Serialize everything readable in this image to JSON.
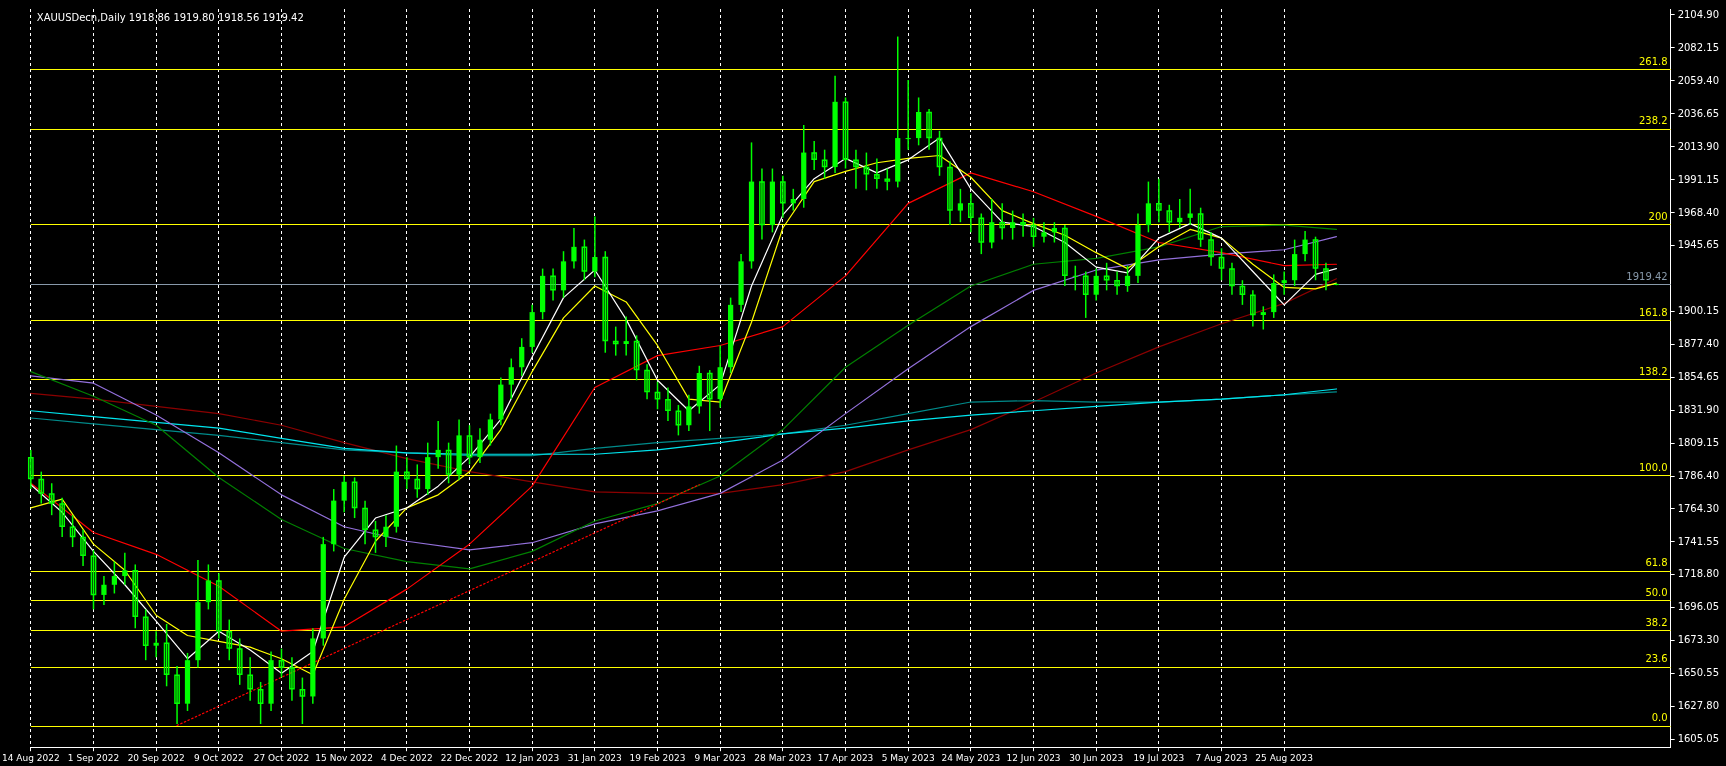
{
  "chart_data": {
    "type": "candlestick",
    "title": "XAUUSDecn,Daily 1918.86 1919.80 1918.56 1919.42",
    "categories": [
      "14 Aug 2022",
      null,
      null,
      null,
      null,
      null,
      "1 Sep 2022",
      null,
      null,
      null,
      null,
      null,
      "20 Sep 2022",
      null,
      null,
      null,
      null,
      null,
      "9 Oct 2022",
      null,
      null,
      null,
      null,
      null,
      "27 Oct 2022",
      null,
      null,
      null,
      null,
      null,
      "15 Nov 2022",
      null,
      null,
      null,
      null,
      null,
      "4 Dec 2022",
      null,
      null,
      null,
      null,
      null,
      "22 Dec 2022",
      null,
      null,
      null,
      null,
      null,
      "12 Jan 2023",
      null,
      null,
      null,
      null,
      null,
      "31 Jan 2023",
      null,
      null,
      null,
      null,
      null,
      "19 Feb 2023",
      null,
      null,
      null,
      null,
      null,
      "9 Mar 2023",
      null,
      null,
      null,
      null,
      null,
      "28 Mar 2023",
      null,
      null,
      null,
      null,
      null,
      "17 Apr 2023",
      null,
      null,
      null,
      null,
      null,
      "5 May 2023",
      null,
      null,
      null,
      null,
      null,
      "24 May 2023",
      null,
      null,
      null,
      null,
      null,
      "12 Jun 2023",
      null,
      null,
      null,
      null,
      null,
      "30 Jun 2023",
      null,
      null,
      null,
      null,
      null,
      "19 Jul 2023",
      null,
      null,
      null,
      null,
      null,
      "7 Aug 2023",
      null,
      null,
      null,
      null,
      null,
      "25 Aug 2023",
      null,
      null,
      null,
      null,
      null,
      null,
      null,
      null,
      null,
      null,
      null,
      null,
      null,
      null,
      null,
      null,
      null,
      null,
      null,
      null,
      null,
      null,
      null,
      null,
      null,
      null,
      null,
      null,
      null,
      null,
      null,
      null,
      null,
      null,
      null,
      null,
      null
    ],
    "color": "#00ff00",
    "ohlc": [
      [
        1800,
        1805,
        1778,
        1785
      ],
      [
        1785,
        1790,
        1768,
        1775
      ],
      [
        1775,
        1782,
        1760,
        1768
      ],
      [
        1768,
        1772,
        1745,
        1752
      ],
      [
        1752,
        1760,
        1738,
        1745
      ],
      [
        1745,
        1750,
        1725,
        1732
      ],
      [
        1732,
        1736,
        1695,
        1705
      ],
      [
        1705,
        1718,
        1698,
        1712
      ],
      [
        1712,
        1728,
        1706,
        1718
      ],
      [
        1718,
        1734,
        1712,
        1722
      ],
      [
        1722,
        1726,
        1682,
        1690
      ],
      [
        1690,
        1695,
        1660,
        1670
      ],
      [
        1670,
        1680,
        1662,
        1672
      ],
      [
        1672,
        1685,
        1642,
        1650
      ],
      [
        1650,
        1656,
        1616,
        1630
      ],
      [
        1630,
        1665,
        1625,
        1660
      ],
      [
        1660,
        1729,
        1655,
        1700
      ],
      [
        1700,
        1726,
        1695,
        1715
      ],
      [
        1715,
        1720,
        1675,
        1680
      ],
      [
        1680,
        1688,
        1660,
        1668
      ],
      [
        1668,
        1675,
        1643,
        1650
      ],
      [
        1650,
        1662,
        1632,
        1640
      ],
      [
        1640,
        1645,
        1616,
        1630
      ],
      [
        1630,
        1666,
        1625,
        1660
      ],
      [
        1660,
        1668,
        1648,
        1655
      ],
      [
        1655,
        1662,
        1632,
        1640
      ],
      [
        1640,
        1648,
        1616,
        1635
      ],
      [
        1635,
        1682,
        1630,
        1675
      ],
      [
        1675,
        1745,
        1670,
        1740
      ],
      [
        1740,
        1778,
        1735,
        1770
      ],
      [
        1770,
        1787,
        1762,
        1783
      ],
      [
        1783,
        1786,
        1758,
        1765
      ],
      [
        1765,
        1770,
        1740,
        1750
      ],
      [
        1750,
        1756,
        1734,
        1745
      ],
      [
        1745,
        1760,
        1738,
        1752
      ],
      [
        1752,
        1808,
        1748,
        1790
      ],
      [
        1790,
        1800,
        1778,
        1785
      ],
      [
        1785,
        1795,
        1772,
        1778
      ],
      [
        1778,
        1810,
        1774,
        1800
      ],
      [
        1800,
        1825,
        1792,
        1805
      ],
      [
        1805,
        1810,
        1782,
        1788
      ],
      [
        1788,
        1826,
        1784,
        1815
      ],
      [
        1815,
        1822,
        1795,
        1800
      ],
      [
        1800,
        1820,
        1796,
        1812
      ],
      [
        1812,
        1830,
        1808,
        1826
      ],
      [
        1826,
        1855,
        1822,
        1850
      ],
      [
        1850,
        1868,
        1840,
        1862
      ],
      [
        1862,
        1882,
        1856,
        1876
      ],
      [
        1876,
        1905,
        1872,
        1900
      ],
      [
        1900,
        1930,
        1895,
        1925
      ],
      [
        1925,
        1930,
        1908,
        1915
      ],
      [
        1915,
        1942,
        1910,
        1935
      ],
      [
        1935,
        1958,
        1930,
        1945
      ],
      [
        1945,
        1950,
        1922,
        1928
      ],
      [
        1928,
        1966,
        1924,
        1938
      ],
      [
        1938,
        1942,
        1872,
        1880
      ],
      [
        1880,
        1890,
        1870,
        1878
      ],
      [
        1878,
        1897,
        1870,
        1880
      ],
      [
        1880,
        1884,
        1853,
        1860
      ],
      [
        1860,
        1864,
        1840,
        1845
      ],
      [
        1845,
        1852,
        1833,
        1840
      ],
      [
        1840,
        1848,
        1825,
        1832
      ],
      [
        1832,
        1836,
        1815,
        1822
      ],
      [
        1822,
        1843,
        1818,
        1835
      ],
      [
        1835,
        1863,
        1830,
        1858
      ],
      [
        1858,
        1860,
        1818,
        1840
      ],
      [
        1840,
        1877,
        1834,
        1862
      ],
      [
        1862,
        1910,
        1858,
        1905
      ],
      [
        1905,
        1940,
        1900,
        1935
      ],
      [
        1935,
        2017,
        1930,
        1990
      ],
      [
        1990,
        1999,
        1950,
        1960
      ],
      [
        1960,
        1999,
        1955,
        1990
      ],
      [
        1990,
        1994,
        1965,
        1975
      ],
      [
        1975,
        1985,
        1970,
        1978
      ],
      [
        1978,
        2029,
        1972,
        2010
      ],
      [
        2010,
        2018,
        1998,
        2005
      ],
      [
        2005,
        2012,
        1992,
        2000
      ],
      [
        2000,
        2063,
        1996,
        2045
      ],
      [
        2045,
        2048,
        1999,
        2005
      ],
      [
        2005,
        2012,
        1985,
        2000
      ],
      [
        2000,
        2010,
        1984,
        1995
      ],
      [
        1995,
        2006,
        1985,
        1992
      ],
      [
        1992,
        1999,
        1984,
        1990
      ],
      [
        1990,
        2090,
        1986,
        2020
      ],
      [
        2020,
        2060,
        2012,
        2020
      ],
      [
        2020,
        2048,
        2015,
        2038
      ],
      [
        2038,
        2040,
        2012,
        2020
      ],
      [
        2020,
        2025,
        1994,
        2000
      ],
      [
        2000,
        2004,
        1960,
        1970
      ],
      [
        1970,
        1985,
        1962,
        1975
      ],
      [
        1975,
        1982,
        1955,
        1965
      ],
      [
        1965,
        1968,
        1940,
        1948
      ],
      [
        1948,
        1978,
        1944,
        1962
      ],
      [
        1962,
        1975,
        1950,
        1958
      ],
      [
        1958,
        1970,
        1950,
        1962
      ],
      [
        1962,
        1968,
        1952,
        1960
      ],
      [
        1960,
        1965,
        1945,
        1952
      ],
      [
        1952,
        1962,
        1948,
        1955
      ],
      [
        1955,
        1962,
        1948,
        1958
      ],
      [
        1958,
        1960,
        1918,
        1925
      ],
      [
        1925,
        1932,
        1915,
        1925
      ],
      [
        1925,
        1928,
        1896,
        1912
      ],
      [
        1912,
        1930,
        1908,
        1925
      ],
      [
        1925,
        1934,
        1915,
        1922
      ],
      [
        1922,
        1928,
        1912,
        1918
      ],
      [
        1918,
        1932,
        1914,
        1925
      ],
      [
        1925,
        1968,
        1920,
        1960
      ],
      [
        1960,
        1990,
        1955,
        1975
      ],
      [
        1975,
        1992,
        1962,
        1970
      ],
      [
        1970,
        1974,
        1955,
        1962
      ],
      [
        1962,
        1978,
        1958,
        1965
      ],
      [
        1965,
        1985,
        1960,
        1968
      ],
      [
        1968,
        1972,
        1945,
        1950
      ],
      [
        1950,
        1955,
        1932,
        1938
      ],
      [
        1938,
        1944,
        1922,
        1930
      ],
      [
        1930,
        1934,
        1912,
        1918
      ],
      [
        1918,
        1922,
        1905,
        1912
      ],
      [
        1912,
        1915,
        1890,
        1898
      ],
      [
        1898,
        1904,
        1888,
        1900
      ],
      [
        1900,
        1926,
        1896,
        1920
      ],
      [
        1920,
        1928,
        1912,
        1922
      ],
      [
        1922,
        1950,
        1918,
        1940
      ],
      [
        1940,
        1956,
        1935,
        1950
      ],
      [
        1950,
        1952,
        1922,
        1930
      ],
      [
        1930,
        1934,
        1915,
        1922
      ],
      [
        1918.86,
        1919.8,
        1918.56,
        1919.42
      ],
      null,
      null,
      null,
      null,
      null,
      null,
      null,
      null,
      null,
      null,
      null,
      null,
      null,
      null,
      null,
      null,
      null,
      null,
      null,
      null,
      null,
      null,
      null,
      null,
      null,
      null,
      null,
      null,
      null,
      null,
      null,
      null
    ],
    "series": [
      {
        "type": "line",
        "color": "#8b0000",
        "values": [
          1844,
          null,
          null,
          null,
          null,
          null,
          1840,
          null,
          null,
          null,
          null,
          null,
          1835,
          null,
          null,
          null,
          null,
          null,
          1830,
          null,
          null,
          null,
          null,
          null,
          1822,
          null,
          null,
          null,
          null,
          null,
          1810,
          null,
          null,
          null,
          null,
          null,
          1799,
          null,
          null,
          null,
          null,
          null,
          1790,
          null,
          null,
          null,
          null,
          null,
          1783,
          null,
          null,
          null,
          null,
          null,
          1776,
          null,
          null,
          null,
          null,
          null,
          1775,
          null,
          null,
          null,
          null,
          null,
          1775,
          null,
          null,
          null,
          null,
          null,
          1781,
          null,
          null,
          null,
          null,
          null,
          1790,
          null,
          null,
          null,
          null,
          null,
          1805,
          null,
          null,
          null,
          null,
          null,
          1819,
          null,
          null,
          null,
          null,
          null,
          1838,
          null,
          null,
          null,
          null,
          null,
          1858,
          null,
          null,
          null,
          null,
          null,
          1876,
          null,
          null,
          null,
          null,
          null,
          1892,
          null,
          null,
          null,
          null,
          null,
          1906,
          null,
          null,
          null,
          null,
          1923,
          null,
          null,
          null,
          null,
          null,
          null,
          null,
          null,
          null,
          null,
          null,
          null,
          null,
          null,
          null,
          null,
          null,
          null,
          null,
          null,
          null,
          null,
          null,
          null,
          null,
          null,
          null,
          null,
          null,
          null,
          null,
          null
        ]
      },
      {
        "type": "line",
        "color": "#008b8b",
        "values": [
          1827,
          null,
          null,
          null,
          null,
          null,
          1823,
          null,
          null,
          null,
          null,
          null,
          1819,
          null,
          null,
          null,
          null,
          null,
          1815,
          null,
          null,
          null,
          null,
          null,
          1810,
          null,
          null,
          null,
          null,
          null,
          1805,
          null,
          null,
          null,
          null,
          null,
          1803,
          null,
          null,
          null,
          null,
          null,
          1801,
          null,
          null,
          null,
          null,
          null,
          1801,
          null,
          null,
          null,
          null,
          null,
          1806,
          null,
          null,
          null,
          null,
          null,
          1810,
          null,
          null,
          null,
          null,
          null,
          1813,
          null,
          null,
          null,
          null,
          null,
          1816,
          null,
          null,
          null,
          null,
          null,
          1822,
          null,
          null,
          null,
          null,
          null,
          1830,
          null,
          null,
          null,
          null,
          null,
          1838,
          null,
          null,
          null,
          null,
          null,
          1839,
          null,
          null,
          null,
          null,
          null,
          1838,
          null,
          null,
          null,
          null,
          null,
          1838,
          null,
          null,
          null,
          null,
          null,
          1840,
          null,
          null,
          null,
          null,
          null,
          1843,
          null,
          null,
          null,
          null,
          1845,
          null,
          null,
          null,
          null,
          null,
          null,
          null,
          null,
          null,
          null,
          null,
          null,
          null,
          null,
          null,
          null,
          null,
          null,
          null,
          null,
          null,
          null,
          null,
          null,
          null,
          null,
          null,
          null,
          null,
          null,
          null,
          null
        ]
      },
      {
        "type": "line",
        "color": "#00e5ee",
        "values": [
          1832,
          null,
          null,
          null,
          null,
          null,
          1828,
          null,
          null,
          null,
          null,
          null,
          1824,
          null,
          null,
          null,
          null,
          null,
          1820,
          null,
          null,
          null,
          null,
          null,
          1813,
          null,
          null,
          null,
          null,
          null,
          1806,
          null,
          null,
          null,
          null,
          null,
          1803,
          null,
          null,
          null,
          null,
          null,
          1802,
          null,
          null,
          null,
          null,
          null,
          1802,
          null,
          null,
          null,
          null,
          null,
          1802,
          null,
          null,
          null,
          null,
          null,
          1805,
          null,
          null,
          null,
          null,
          null,
          1810,
          null,
          null,
          null,
          null,
          null,
          1816,
          null,
          null,
          null,
          null,
          null,
          1820,
          null,
          null,
          null,
          null,
          null,
          1825,
          null,
          null,
          null,
          null,
          null,
          1829,
          null,
          null,
          null,
          null,
          null,
          1832,
          null,
          null,
          null,
          null,
          null,
          1835,
          null,
          null,
          null,
          null,
          null,
          1838,
          null,
          null,
          null,
          null,
          null,
          1840,
          null,
          null,
          null,
          null,
          null,
          1843,
          null,
          null,
          null,
          null,
          1847,
          null,
          null,
          null,
          null,
          null,
          null,
          null,
          null,
          null,
          null,
          null,
          null,
          null,
          null,
          null,
          null,
          null,
          null,
          null,
          null,
          null,
          null,
          null,
          null,
          null,
          null,
          null,
          null,
          null,
          null,
          null,
          null
        ]
      },
      {
        "type": "line",
        "color": "#9370db",
        "values": [
          1856,
          null,
          null,
          null,
          null,
          null,
          1851,
          null,
          null,
          null,
          null,
          null,
          1829,
          null,
          null,
          null,
          null,
          null,
          1803,
          null,
          null,
          null,
          null,
          null,
          1774,
          null,
          null,
          null,
          null,
          null,
          1752,
          null,
          null,
          null,
          null,
          null,
          1742,
          null,
          null,
          null,
          null,
          null,
          1736,
          null,
          null,
          null,
          null,
          null,
          1741,
          null,
          null,
          null,
          null,
          null,
          1754,
          null,
          null,
          null,
          null,
          null,
          1763,
          null,
          null,
          null,
          null,
          null,
          1775,
          null,
          null,
          null,
          null,
          null,
          1798,
          null,
          null,
          null,
          null,
          null,
          1830,
          null,
          null,
          null,
          null,
          null,
          1861,
          null,
          null,
          null,
          null,
          null,
          1890,
          null,
          null,
          null,
          null,
          null,
          1915,
          null,
          null,
          null,
          null,
          null,
          1929,
          null,
          null,
          null,
          null,
          null,
          1936,
          null,
          null,
          null,
          null,
          null,
          1940,
          null,
          null,
          null,
          null,
          null,
          1943,
          null,
          null,
          null,
          null,
          1952,
          null,
          null,
          null,
          null,
          null,
          null,
          null,
          null,
          null,
          null,
          null,
          null,
          null,
          null,
          null,
          null,
          null,
          null,
          null,
          null,
          null,
          null,
          null,
          null,
          null,
          null,
          null,
          null,
          null,
          null,
          null,
          null
        ]
      },
      {
        "type": "line",
        "color": "#008000",
        "values": [
          1859,
          null,
          null,
          null,
          null,
          null,
          1842,
          null,
          null,
          null,
          null,
          null,
          1822,
          null,
          null,
          null,
          null,
          null,
          1786,
          null,
          null,
          null,
          null,
          null,
          1757,
          null,
          null,
          null,
          null,
          null,
          1737,
          null,
          null,
          null,
          null,
          null,
          1728,
          null,
          null,
          null,
          null,
          null,
          1723,
          null,
          null,
          null,
          null,
          null,
          1735,
          null,
          null,
          null,
          null,
          null,
          1756,
          null,
          null,
          null,
          null,
          null,
          1768,
          null,
          null,
          null,
          null,
          null,
          1787,
          null,
          null,
          null,
          null,
          null,
          1819,
          null,
          null,
          null,
          null,
          null,
          1862,
          null,
          null,
          null,
          null,
          null,
          1891,
          null,
          null,
          null,
          null,
          null,
          1918,
          null,
          null,
          null,
          null,
          null,
          1933,
          null,
          null,
          null,
          null,
          null,
          1937,
          null,
          null,
          null,
          null,
          null,
          1945,
          null,
          null,
          null,
          null,
          null,
          1959,
          null,
          null,
          null,
          null,
          null,
          1960,
          null,
          null,
          null,
          null,
          1957,
          null,
          null,
          null,
          null,
          null,
          null,
          null,
          null,
          null,
          null,
          null,
          null,
          null,
          null,
          null,
          null,
          null,
          null,
          null,
          null,
          null,
          null,
          null,
          null,
          null,
          null,
          null,
          null,
          null,
          null,
          null,
          null
        ]
      },
      {
        "type": "line",
        "color": "#ff0000",
        "values": [
          1782,
          null,
          null,
          null,
          null,
          null,
          1748,
          null,
          null,
          null,
          null,
          null,
          1733,
          null,
          null,
          null,
          null,
          null,
          1711,
          null,
          null,
          null,
          null,
          null,
          1680,
          null,
          null,
          null,
          null,
          null,
          1683,
          null,
          null,
          null,
          null,
          null,
          1709,
          null,
          null,
          null,
          null,
          null,
          1740,
          null,
          null,
          null,
          null,
          null,
          1780,
          null,
          null,
          null,
          null,
          null,
          1848,
          null,
          null,
          null,
          null,
          null,
          1870,
          null,
          null,
          null,
          null,
          null,
          1877,
          null,
          null,
          null,
          null,
          null,
          1890,
          null,
          null,
          null,
          null,
          null,
          1925,
          null,
          null,
          null,
          null,
          null,
          1975,
          null,
          null,
          null,
          null,
          null,
          1996,
          null,
          null,
          null,
          null,
          null,
          1983,
          null,
          null,
          null,
          null,
          null,
          1966,
          null,
          null,
          null,
          null,
          null,
          1948,
          null,
          null,
          null,
          null,
          null,
          1941,
          null,
          null,
          null,
          null,
          null,
          1932,
          null,
          null,
          null,
          null,
          1933,
          null,
          null,
          null,
          null,
          null,
          null,
          null,
          null,
          null,
          null,
          null,
          null,
          null,
          null,
          null,
          null,
          null,
          null,
          null,
          null,
          null,
          null,
          null,
          null,
          null,
          null,
          null,
          null,
          null,
          null,
          null,
          null
        ]
      },
      {
        "type": "line",
        "color": "#ffff00",
        "values": [
          1765,
          null,
          null,
          1771,
          null,
          null,
          1740,
          null,
          null,
          1722,
          null,
          null,
          1691,
          null,
          null,
          1677,
          null,
          null,
          1673,
          null,
          null,
          1669,
          null,
          null,
          1661,
          null,
          null,
          1650,
          null,
          null,
          1702,
          null,
          null,
          1742,
          null,
          null,
          1765,
          null,
          null,
          1774,
          null,
          null,
          1790,
          null,
          null,
          1819,
          null,
          null,
          1859,
          null,
          null,
          1896,
          null,
          null,
          1918,
          null,
          null,
          1907,
          null,
          null,
          1877,
          null,
          null,
          1840,
          null,
          null,
          1838,
          null,
          null,
          1893,
          null,
          null,
          1958,
          null,
          null,
          1990,
          null,
          null,
          1997,
          null,
          null,
          2003,
          null,
          null,
          2006,
          null,
          null,
          2008,
          null,
          null,
          1993,
          null,
          null,
          1970,
          null,
          null,
          1961,
          null,
          null,
          1953,
          null,
          null,
          1941,
          null,
          null,
          1930,
          null,
          null,
          1945,
          null,
          null,
          1957,
          null,
          null,
          1951,
          null,
          null,
          1933,
          null,
          null,
          1917,
          null,
          null,
          1916,
          null,
          1920,
          null,
          null,
          null,
          null,
          null,
          null,
          null,
          null,
          null,
          null,
          null,
          null,
          null,
          null,
          null,
          null,
          null,
          null,
          null,
          null,
          null,
          null,
          null,
          null,
          null,
          null,
          null,
          null,
          null,
          null,
          null,
          null
        ]
      },
      {
        "type": "line",
        "color": "#ffffff",
        "values": [
          1781,
          null,
          null,
          1762,
          null,
          null,
          1735,
          null,
          null,
          1712,
          null,
          null,
          1687,
          null,
          null,
          1661,
          null,
          null,
          1680,
          null,
          null,
          1667,
          null,
          null,
          1651,
          null,
          null,
          1666,
          null,
          null,
          1731,
          null,
          null,
          1758,
          null,
          null,
          1765,
          null,
          null,
          1780,
          null,
          null,
          1800,
          null,
          null,
          1826,
          null,
          null,
          1869,
          null,
          null,
          1910,
          null,
          null,
          1929,
          null,
          null,
          1895,
          null,
          null,
          1853,
          null,
          null,
          1832,
          null,
          null,
          1850,
          null,
          null,
          1918,
          null,
          null,
          1967,
          null,
          null,
          1992,
          null,
          null,
          2006,
          null,
          null,
          1996,
          null,
          null,
          2005,
          null,
          null,
          2020,
          null,
          null,
          1985,
          null,
          null,
          1962,
          null,
          null,
          1959,
          null,
          null,
          1948,
          null,
          null,
          1931,
          null,
          null,
          1927,
          null,
          null,
          1951,
          null,
          null,
          1961,
          null,
          null,
          1951,
          null,
          null,
          1928,
          null,
          null,
          1905,
          null,
          null,
          1926,
          null,
          1930,
          null,
          null,
          null,
          null,
          null,
          null,
          null,
          null,
          null,
          null,
          null,
          null,
          null,
          null,
          null,
          null,
          null,
          null,
          null,
          null,
          null,
          null,
          null,
          null,
          null,
          null,
          null,
          null,
          null,
          null,
          null,
          null
        ]
      },
      {
        "type": "line",
        "color": "#ff0000",
        "line_style": "dotted",
        "values": [
          null,
          null,
          null,
          null,
          null,
          null,
          null,
          null,
          null,
          null,
          null,
          null,
          null,
          null,
          1615,
          null,
          null,
          null,
          null,
          null,
          null,
          null,
          null,
          null,
          null,
          null,
          null,
          null,
          null,
          null,
          null,
          null,
          null,
          null,
          null,
          null,
          null,
          null,
          null,
          null,
          null,
          null,
          null,
          null,
          null,
          null,
          null,
          null,
          null,
          null,
          null,
          null,
          null,
          null,
          null,
          null,
          null,
          null,
          null,
          null,
          null,
          null,
          null,
          null,
          1781,
          null,
          null,
          null,
          null,
          null,
          null,
          null,
          null,
          null,
          null,
          null,
          null,
          null,
          null,
          null,
          null,
          null,
          null,
          null,
          null,
          null,
          null,
          null,
          null,
          null,
          null,
          null,
          null,
          null,
          null,
          null,
          null,
          null,
          null,
          null,
          null,
          null,
          null,
          null,
          null,
          null,
          null,
          null,
          null,
          null,
          null,
          null,
          null,
          null,
          null,
          null,
          null,
          null,
          null,
          null,
          null,
          null,
          null,
          null,
          null,
          null,
          null,
          null,
          null,
          null,
          null,
          null,
          null,
          null,
          null,
          null,
          null,
          null,
          null,
          null,
          null,
          null,
          null,
          null,
          null,
          null,
          null,
          null,
          null,
          null,
          null,
          null,
          null,
          null,
          null,
          null,
          null,
          null
        ]
      }
    ],
    "ylim": [
      1600,
      2109
    ],
    "yticks": [
      {
        "value": 2104.9,
        "label": "2104.90"
      },
      {
        "value": 2082.15,
        "label": "2082.15"
      },
      {
        "value": 2059.4,
        "label": "2059.40"
      },
      {
        "value": 2036.65,
        "label": "2036.65"
      },
      {
        "value": 2013.9,
        "label": "2013.90"
      },
      {
        "value": 1991.15,
        "label": "1991.15"
      },
      {
        "value": 1968.4,
        "label": "1968.40"
      },
      {
        "value": 1945.65,
        "label": "1945.65"
      },
      {
        "value": 1900.15,
        "label": "1900.15"
      },
      {
        "value": 1877.4,
        "label": "1877.40"
      },
      {
        "value": 1854.65,
        "label": "1854.65"
      },
      {
        "value": 1831.9,
        "label": "1831.90"
      },
      {
        "value": 1809.15,
        "label": "1809.15"
      },
      {
        "value": 1786.4,
        "label": "1786.40"
      },
      {
        "value": 1764.3,
        "label": "1764.30"
      },
      {
        "value": 1741.55,
        "label": "1741.55"
      },
      {
        "value": 1718.8,
        "label": "1718.80"
      },
      {
        "value": 1696.05,
        "label": "1696.05"
      },
      {
        "value": 1673.3,
        "label": "1673.30"
      },
      {
        "value": 1650.55,
        "label": "1650.55"
      },
      {
        "value": 1627.8,
        "label": "1627.80"
      },
      {
        "value": 1605.05,
        "label": "1605.05"
      }
    ],
    "grid": "x",
    "ref_lines": [
      {
        "axis": "y",
        "value": 2067.4,
        "color": "#ffff00"
      },
      {
        "axis": "y",
        "value": 2026.6,
        "color": "#ffff00"
      },
      {
        "axis": "y",
        "value": 1960.6,
        "color": "#ffff00"
      },
      {
        "axis": "y",
        "value": 1894.5,
        "color": "#ffff00"
      },
      {
        "axis": "y",
        "value": 1853.8,
        "color": "#ffff00"
      },
      {
        "axis": "y",
        "value": 1787.7,
        "color": "#ffff00"
      },
      {
        "axis": "y",
        "value": 1721.6,
        "color": "#ffff00"
      },
      {
        "axis": "y",
        "value": 1701.3,
        "color": "#ffff00"
      },
      {
        "axis": "y",
        "value": 1680.8,
        "color": "#ffff00"
      },
      {
        "axis": "y",
        "value": 1655.6,
        "color": "#ffff00"
      },
      {
        "axis": "y",
        "value": 1614.8,
        "color": "#ffff00"
      },
      {
        "axis": "y",
        "value": 1919.42,
        "label": "1919.42",
        "color": "#8899aa"
      }
    ],
    "annotations": [
      {
        "text": "261.8",
        "y": 2067.4
      },
      {
        "text": "238.2",
        "y": 2026.6
      },
      {
        "text": "200",
        "y": 1960.6
      },
      {
        "text": "161.8",
        "y": 1894.5
      },
      {
        "text": "138.2",
        "y": 1853.8
      },
      {
        "text": "100.0",
        "y": 1787.7
      },
      {
        "text": "61.8",
        "y": 1721.6
      },
      {
        "text": "50.0",
        "y": 1701.3
      },
      {
        "text": "38.2",
        "y": 1680.8
      },
      {
        "text": "23.6",
        "y": 1655.6
      },
      {
        "text": "0.0",
        "y": 1614.8
      }
    ]
  }
}
